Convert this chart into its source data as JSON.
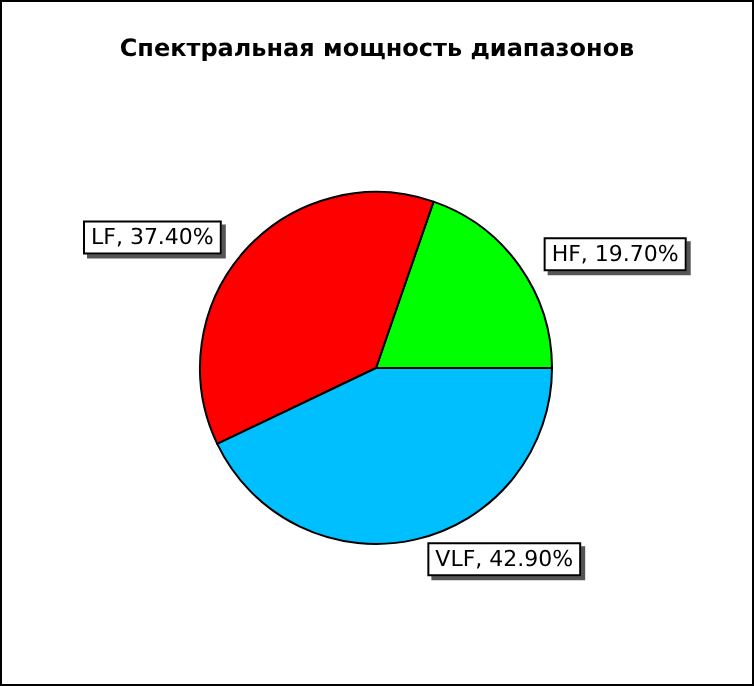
{
  "chart_data": {
    "type": "pie",
    "title": "Спектральная мощность диапазонов",
    "categories": [
      "HF",
      "LF",
      "VLF"
    ],
    "values": [
      19.7,
      37.4,
      42.9
    ],
    "colors": [
      "#00ff00",
      "#ff0000",
      "#00bfff"
    ],
    "value_labels": [
      "19.70%",
      "37.40%",
      "42.90%"
    ],
    "legend": false
  }
}
